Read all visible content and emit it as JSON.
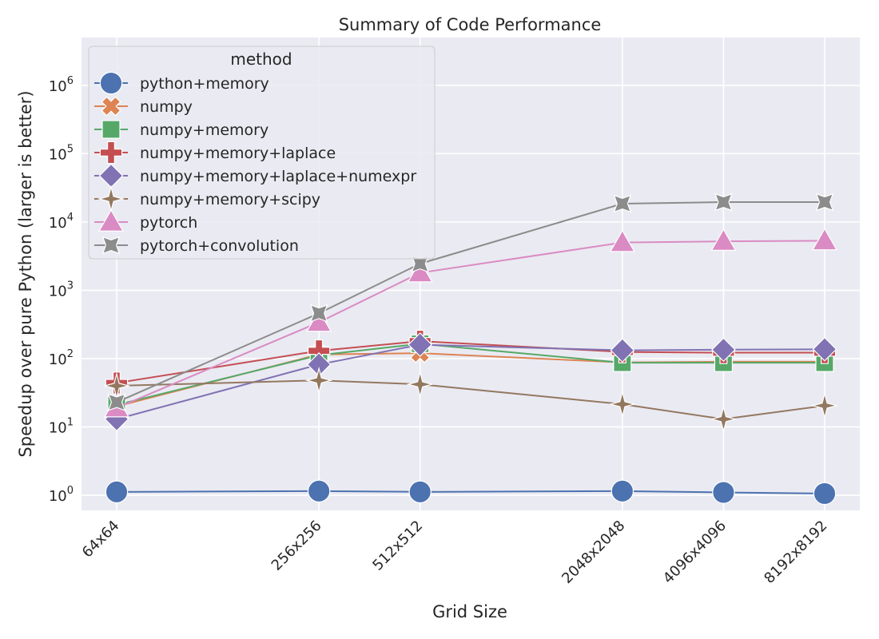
{
  "chart_data": {
    "type": "line",
    "title": "Summary of Code Performance",
    "xlabel": "Grid Size",
    "ylabel": "Speedup over pure Python (larger is better)",
    "yscale": "log",
    "ylim": [
      0.6,
      5000000
    ],
    "yticks": [
      1,
      10,
      100,
      1000,
      10000,
      100000,
      1000000
    ],
    "ytick_labels": [
      {
        "base": "10",
        "exp": "0"
      },
      {
        "base": "10",
        "exp": "1"
      },
      {
        "base": "10",
        "exp": "2"
      },
      {
        "base": "10",
        "exp": "3"
      },
      {
        "base": "10",
        "exp": "4"
      },
      {
        "base": "10",
        "exp": "5"
      },
      {
        "base": "10",
        "exp": "6"
      }
    ],
    "x": [
      64,
      256,
      512,
      2048,
      4096,
      8192
    ],
    "xlim": [
      64,
      8192
    ],
    "categories": [
      "64x64",
      "256x256",
      "512x512",
      "2048x2048",
      "4096x4096",
      "8192x8192"
    ],
    "grid": true,
    "legend_title": "method",
    "legend_position": "top-left",
    "series": [
      {
        "name": "python+memory",
        "color": "#4c72b0",
        "marker": "circle",
        "values": [
          1.12,
          1.15,
          1.12,
          1.15,
          1.1,
          1.06
        ]
      },
      {
        "name": "numpy",
        "color": "#dd8452",
        "marker": "x",
        "values": [
          20,
          115,
          120,
          88,
          90,
          90
        ]
      },
      {
        "name": "numpy+memory",
        "color": "#55a868",
        "marker": "square",
        "values": [
          21,
          112,
          165,
          87,
          87,
          87
        ]
      },
      {
        "name": "numpy+memory+laplace",
        "color": "#c44e52",
        "marker": "plus",
        "values": [
          44,
          130,
          180,
          125,
          122,
          122
        ]
      },
      {
        "name": "numpy+memory+laplace+numexpr",
        "color": "#8172b3",
        "marker": "diamond",
        "values": [
          13,
          82,
          160,
          132,
          135,
          137
        ]
      },
      {
        "name": "numpy+memory+scipy",
        "color": "#937860",
        "marker": "star4",
        "values": [
          40,
          48,
          42,
          21.5,
          13,
          20.5
        ]
      },
      {
        "name": "pytorch",
        "color": "#da8bc3",
        "marker": "triangle",
        "values": [
          19,
          340,
          1800,
          5000,
          5200,
          5300
        ]
      },
      {
        "name": "pytorch+convolution",
        "color": "#8c8c8c",
        "marker": "star",
        "values": [
          23,
          460,
          2450,
          18500,
          19500,
          19500
        ]
      }
    ]
  }
}
